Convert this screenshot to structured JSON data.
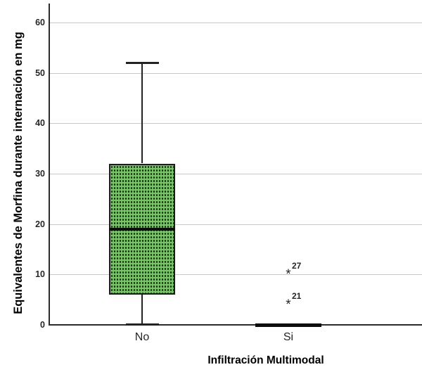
{
  "chart_data": {
    "type": "boxplot",
    "title": "",
    "xlabel": "Infiltración Multimodal",
    "ylabel": "Equivalentes de Morfina durante internación en mg",
    "categories": [
      "No",
      "Si"
    ],
    "y_ticks": [
      0,
      10,
      20,
      30,
      40,
      50,
      60
    ],
    "ylim": [
      0,
      63
    ],
    "grid": "horizontal-only, light gray, extends to right edge, no top or right plot border",
    "legend": "none",
    "outlier_marker": "*",
    "groups": [
      {
        "category": "No",
        "whisker_low": 0,
        "q1": 6,
        "median": 19,
        "q3": 32,
        "whisker_high": 52,
        "outliers": []
      },
      {
        "category": "Si",
        "whisker_low": 0,
        "q1": 0,
        "median": 0,
        "q3": 0,
        "whisker_high": 0,
        "outliers": [
          {
            "value": 10,
            "label": "27"
          },
          {
            "value": 4,
            "label": "21"
          }
        ]
      }
    ],
    "colors": {
      "box_fill": "#79c468",
      "box_dot": "#14380f",
      "box_border": "#1d1d1d",
      "median": "#0d0d0d",
      "whisker": "#222222",
      "axis": "#2b2b2b",
      "gridline": "#c8c8c8",
      "text": "#262626"
    }
  }
}
